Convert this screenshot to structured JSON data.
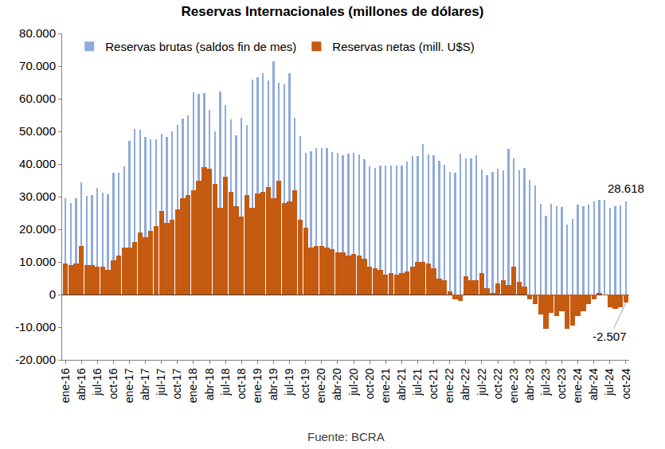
{
  "chart_data": {
    "type": "bar",
    "title": "Reservas Internacionales (millones de dólares)",
    "source": "Fuente: BCRA",
    "categories": [
      "ene-16",
      null,
      null,
      "abr-16",
      null,
      null,
      "jul-16",
      null,
      null,
      "oct-16",
      null,
      null,
      "ene-17",
      null,
      null,
      "abr-17",
      null,
      null,
      "jul-17",
      null,
      null,
      "oct-17",
      null,
      null,
      "ene-18",
      null,
      null,
      "abr-18",
      null,
      null,
      "jul-18",
      null,
      null,
      "oct-18",
      null,
      null,
      "ene-19",
      null,
      null,
      "abr-19",
      null,
      null,
      "jul-19",
      null,
      null,
      "oct-19",
      null,
      null,
      "ene-20",
      null,
      null,
      "abr-20",
      null,
      null,
      "jul-20",
      null,
      null,
      "oct-20",
      null,
      null,
      "ene-21",
      null,
      null,
      "abr-21",
      null,
      null,
      "jul-21",
      null,
      null,
      "oct-21",
      null,
      null,
      "ene-22",
      null,
      null,
      "abr-22",
      null,
      null,
      "jul-22",
      null,
      null,
      "oct-22",
      null,
      null,
      "ene-23",
      null,
      null,
      "abr-23",
      null,
      null,
      "jul-23",
      null,
      null,
      "oct-23",
      null,
      null,
      "ene-24",
      null,
      null,
      "abr-24",
      null,
      null,
      "jul-24",
      null,
      null,
      "oct-24"
    ],
    "series": [
      {
        "name": "Reservas brutas (saldos fin de mes)",
        "color": "#8faadc",
        "values": [
          29500,
          28000,
          29500,
          34300,
          30200,
          30500,
          32700,
          31200,
          30800,
          37200,
          37400,
          39300,
          47000,
          50800,
          50500,
          48200,
          47500,
          47500,
          49200,
          48300,
          50000,
          52000,
          54000,
          55000,
          62000,
          61500,
          61700,
          56500,
          50000,
          62200,
          58000,
          53600,
          48900,
          54100,
          51900,
          65800,
          66500,
          67800,
          65600,
          71500,
          64800,
          64300,
          67800,
          54100,
          48500,
          43300,
          43900,
          44800,
          44800,
          44900,
          43600,
          43300,
          42700,
          43200,
          43400,
          42900,
          41400,
          39300,
          38700,
          39400,
          39600,
          39500,
          39500,
          39600,
          40800,
          42400,
          42400,
          46200,
          42900,
          42800,
          41000,
          39700,
          37600,
          37300,
          43100,
          41600,
          41600,
          42800,
          38200,
          36600,
          37600,
          38600,
          38100,
          44600,
          41600,
          38100,
          38900,
          35200,
          33300,
          27900,
          24200,
          27700,
          27000,
          26800,
          21500,
          23100,
          27500,
          27000,
          27500,
          28600,
          29000,
          29000,
          26600,
          27000,
          27400,
          28618
        ]
      },
      {
        "name": "Reservas netas (mill. U$S)",
        "color": "#c55a11",
        "values": [
          9500,
          9000,
          9500,
          15000,
          9000,
          9000,
          8500,
          8500,
          7500,
          10500,
          12000,
          14500,
          14500,
          16000,
          19000,
          17500,
          19500,
          21000,
          25500,
          22000,
          23000,
          26000,
          29500,
          30500,
          32000,
          35000,
          39000,
          38500,
          34000,
          26500,
          36000,
          31500,
          27000,
          24000,
          30500,
          26500,
          31000,
          31500,
          33000,
          29500,
          35000,
          28000,
          28500,
          32000,
          23000,
          20500,
          14500,
          15000,
          15000,
          14500,
          14000,
          13000,
          13000,
          12000,
          12500,
          12000,
          11000,
          8500,
          8000,
          7500,
          6000,
          6500,
          6000,
          6500,
          7000,
          8500,
          10000,
          10000,
          9500,
          8000,
          5000,
          4500,
          1000,
          -1500,
          -2000,
          5500,
          4500,
          4500,
          6500,
          2000,
          500,
          3500,
          4500,
          3000,
          8500,
          4000,
          2500,
          -1500,
          -3000,
          -6000,
          -10500,
          -5500,
          -6500,
          -5000,
          -10500,
          -9500,
          -6500,
          -5000,
          -3000,
          -1500,
          500,
          -300,
          -4000,
          -4500,
          -4000,
          -2507
        ]
      }
    ],
    "ylim": [
      -20000,
      80000
    ],
    "yticks": [
      {
        "value": -20000,
        "label": "-20.000"
      },
      {
        "value": -10000,
        "label": "-10.000"
      },
      0,
      {
        "value": 10000,
        "label": "10.000"
      },
      {
        "value": 20000,
        "label": "20.000"
      },
      {
        "value": 30000,
        "label": "30.000"
      },
      {
        "value": 40000,
        "label": "40.000"
      },
      {
        "value": 50000,
        "label": "50.000"
      },
      {
        "value": 60000,
        "label": "60.000"
      },
      {
        "value": 70000,
        "label": "70.000"
      },
      {
        "value": 80000,
        "label": "80.000"
      }
    ],
    "grid": false,
    "legend": "top left",
    "annotations": [
      {
        "text": "28.618",
        "x": "oct-24",
        "y": 28618
      },
      {
        "text": "-2.507",
        "x": "oct-24",
        "y": -2507
      }
    ]
  }
}
